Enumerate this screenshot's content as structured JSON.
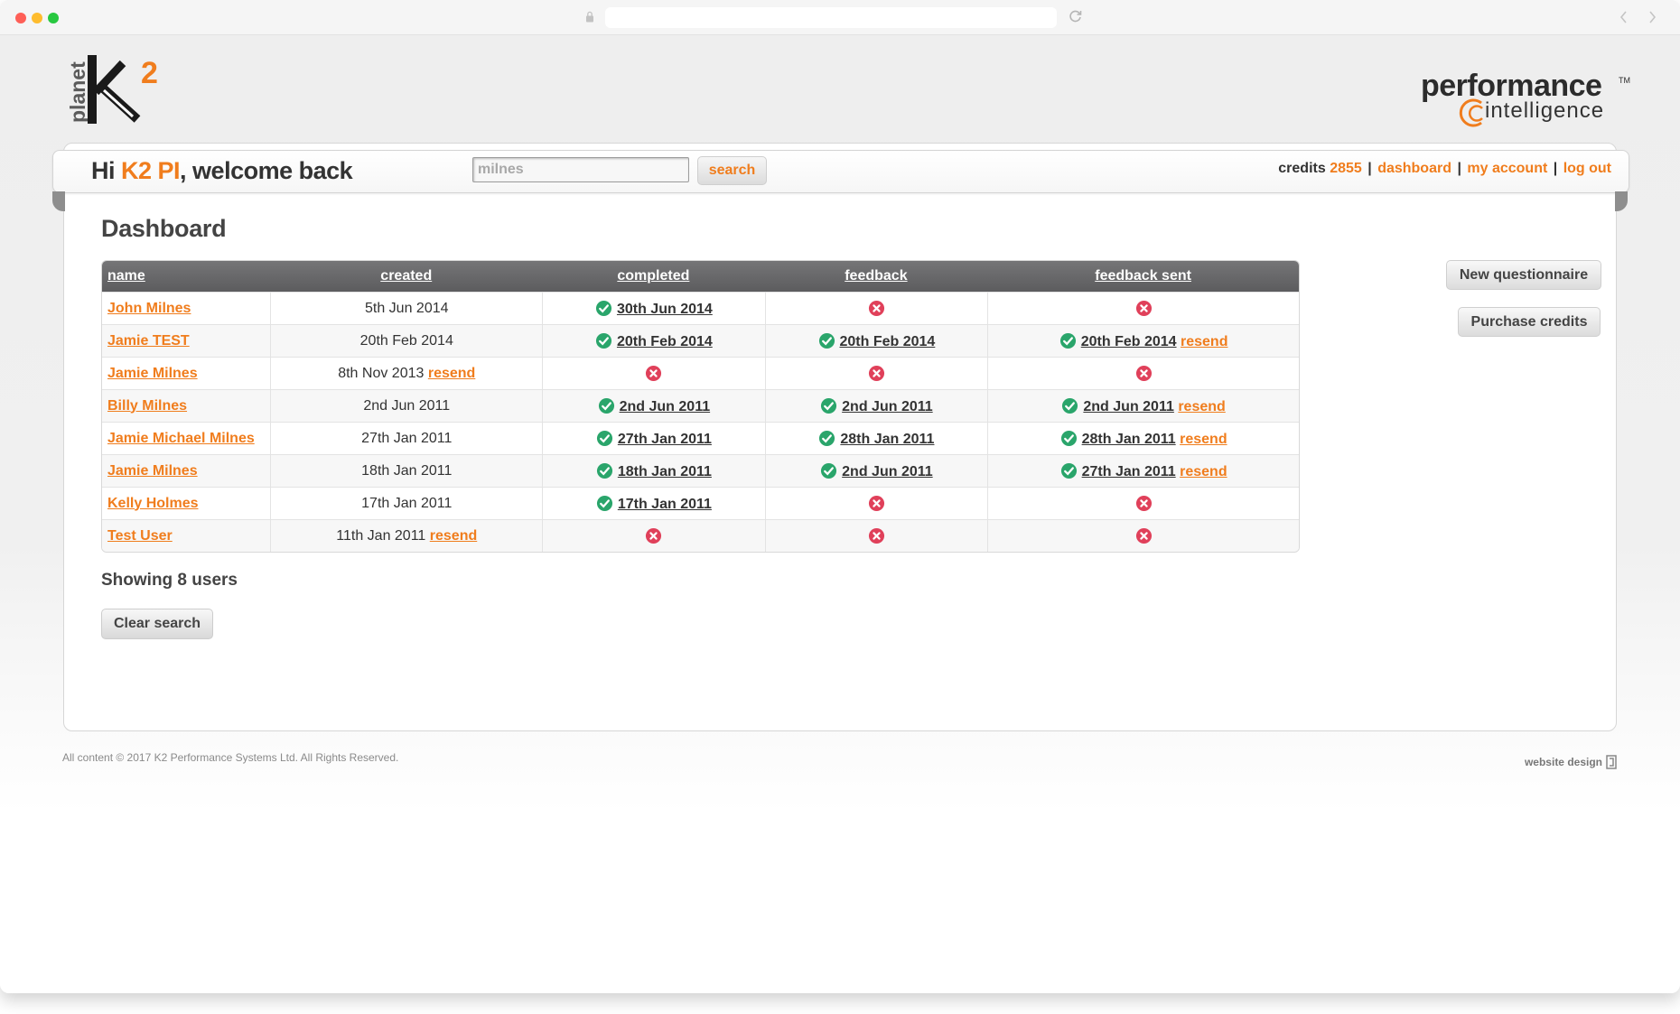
{
  "brand": {
    "k2_logo_alt": "planet k2",
    "pi_logo_alt": "performance intelligence"
  },
  "header": {
    "greeting_prefix": "Hi",
    "user_name": "K2 PI",
    "greeting_suffix": ", welcome back",
    "search_value": "milnes",
    "search_label": "search",
    "credits_label": "credits",
    "credits_value": "2855",
    "links": [
      "dashboard",
      "my account",
      "log out"
    ]
  },
  "page": {
    "title": "Dashboard",
    "showing_text": "Showing 8 users",
    "clear_search_label": "Clear search"
  },
  "side_buttons": {
    "new_questionnaire": "New questionnaire",
    "purchase_credits": "Purchase credits"
  },
  "table": {
    "columns": [
      "name",
      "created",
      "completed",
      "feedback",
      "feedback sent"
    ],
    "resend_label": "resend",
    "rows": [
      {
        "name": "John Milnes",
        "created": "5th Jun 2014",
        "created_resend": false,
        "completed": "30th Jun 2014",
        "feedback": null,
        "feedback_sent": null,
        "sent_resend": false
      },
      {
        "name": "Jamie TEST",
        "created": "20th Feb 2014",
        "created_resend": false,
        "completed": "20th Feb 2014",
        "feedback": "20th Feb 2014",
        "feedback_sent": "20th Feb 2014",
        "sent_resend": true
      },
      {
        "name": "Jamie Milnes",
        "created": "8th Nov 2013",
        "created_resend": true,
        "completed": null,
        "feedback": null,
        "feedback_sent": null,
        "sent_resend": false
      },
      {
        "name": "Billy Milnes",
        "created": "2nd Jun 2011",
        "created_resend": false,
        "completed": "2nd Jun 2011",
        "feedback": "2nd Jun 2011",
        "feedback_sent": "2nd Jun 2011",
        "sent_resend": true
      },
      {
        "name": "Jamie Michael Milnes",
        "created": "27th Jan 2011",
        "created_resend": false,
        "completed": "27th Jan 2011",
        "feedback": "28th Jan 2011",
        "feedback_sent": "28th Jan 2011",
        "sent_resend": true
      },
      {
        "name": "Jamie Milnes",
        "created": "18th Jan 2011",
        "created_resend": false,
        "completed": "18th Jan 2011",
        "feedback": "2nd Jun 2011",
        "feedback_sent": "27th Jan 2011",
        "sent_resend": true
      },
      {
        "name": "Kelly Holmes",
        "created": "17th Jan 2011",
        "created_resend": false,
        "completed": "17th Jan 2011",
        "feedback": null,
        "feedback_sent": null,
        "sent_resend": false
      },
      {
        "name": "Test User",
        "created": "11th Jan 2011",
        "created_resend": true,
        "completed": null,
        "feedback": null,
        "feedback_sent": null,
        "sent_resend": false
      }
    ]
  },
  "footer": {
    "copyright": "All content © 2017 K2 Performance Systems Ltd. All Rights Reserved.",
    "design_credit": "website design"
  },
  "colors": {
    "accent": "#f07d1d",
    "header_row": "#666668",
    "check": "#2aa56b",
    "cross": "#e0405a"
  },
  "icons": {
    "status_yes": "check-icon",
    "status_no": "cross-icon"
  }
}
